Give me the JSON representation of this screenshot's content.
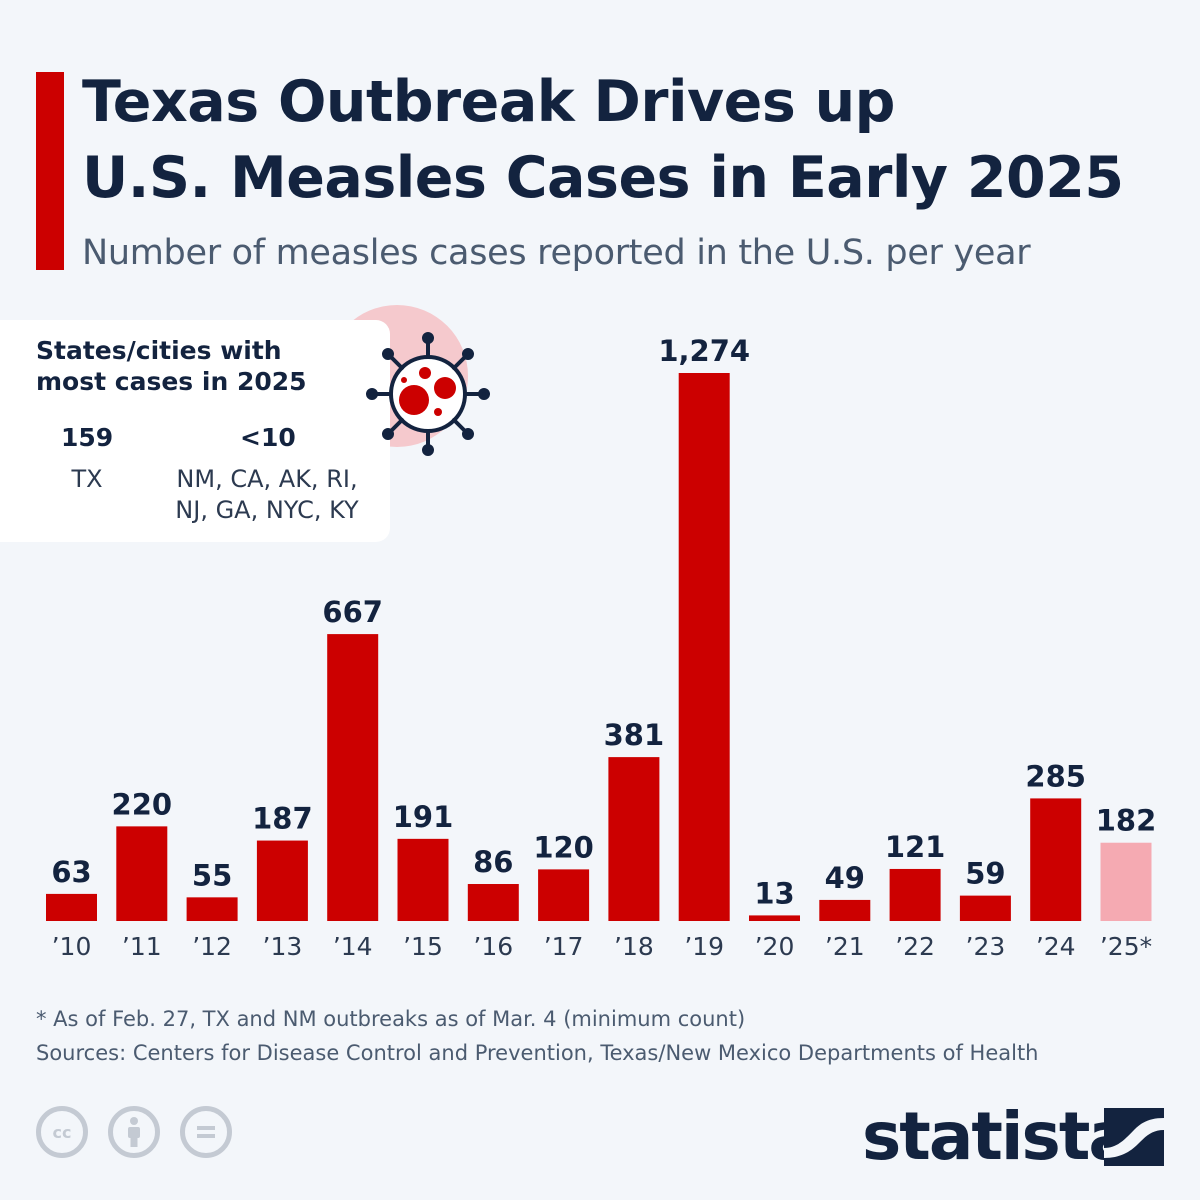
{
  "header": {
    "title_line1": "Texas Outbreak Drives up",
    "title_line2": "U.S. Measles Cases in Early 2025",
    "subtitle": "Number of measles cases reported in the U.S. per year"
  },
  "info_box": {
    "heading_line1": "States/cities with",
    "heading_line2": "most cases in 2025",
    "col1_value": "159",
    "col1_label": "TX",
    "col2_value": "<10",
    "col2_label_line1": "NM, CA, AK, RI,",
    "col2_label_line2": "NJ, GA, NYC, KY",
    "icon": "virus-icon"
  },
  "chart_data": {
    "type": "bar",
    "title": "Texas Outbreak Drives up U.S. Measles Cases in Early 2025",
    "subtitle": "Number of measles cases reported in the U.S. per year",
    "xlabel": "",
    "ylabel": "",
    "ylim": [
      0,
      1274
    ],
    "grid": false,
    "categories": [
      "’10",
      "’11",
      "’12",
      "’13",
      "’14",
      "’15",
      "’16",
      "’17",
      "’18",
      "’19",
      "’20",
      "’21",
      "’22",
      "’23",
      "’24",
      "’25*"
    ],
    "values": [
      63,
      220,
      55,
      187,
      667,
      191,
      86,
      120,
      381,
      1274,
      13,
      49,
      121,
      59,
      285,
      182
    ],
    "value_labels": [
      "63",
      "220",
      "55",
      "187",
      "667",
      "191",
      "86",
      "120",
      "381",
      "1,274",
      "13",
      "49",
      "121",
      "59",
      "285",
      "182"
    ],
    "colors": {
      "default": "#cc0000",
      "partial_year": "#f5aab2"
    },
    "partial_index": 15
  },
  "footer": {
    "note": "* As of Feb. 27, TX and NM outbreaks as of Mar. 4 (minimum count)",
    "sources": "Sources: Centers for Disease Control and Prevention, Texas/New Mexico Departments of Health",
    "brand": "statista",
    "license_icons": [
      "cc-icon",
      "attribution-icon",
      "no-derivatives-icon"
    ]
  }
}
